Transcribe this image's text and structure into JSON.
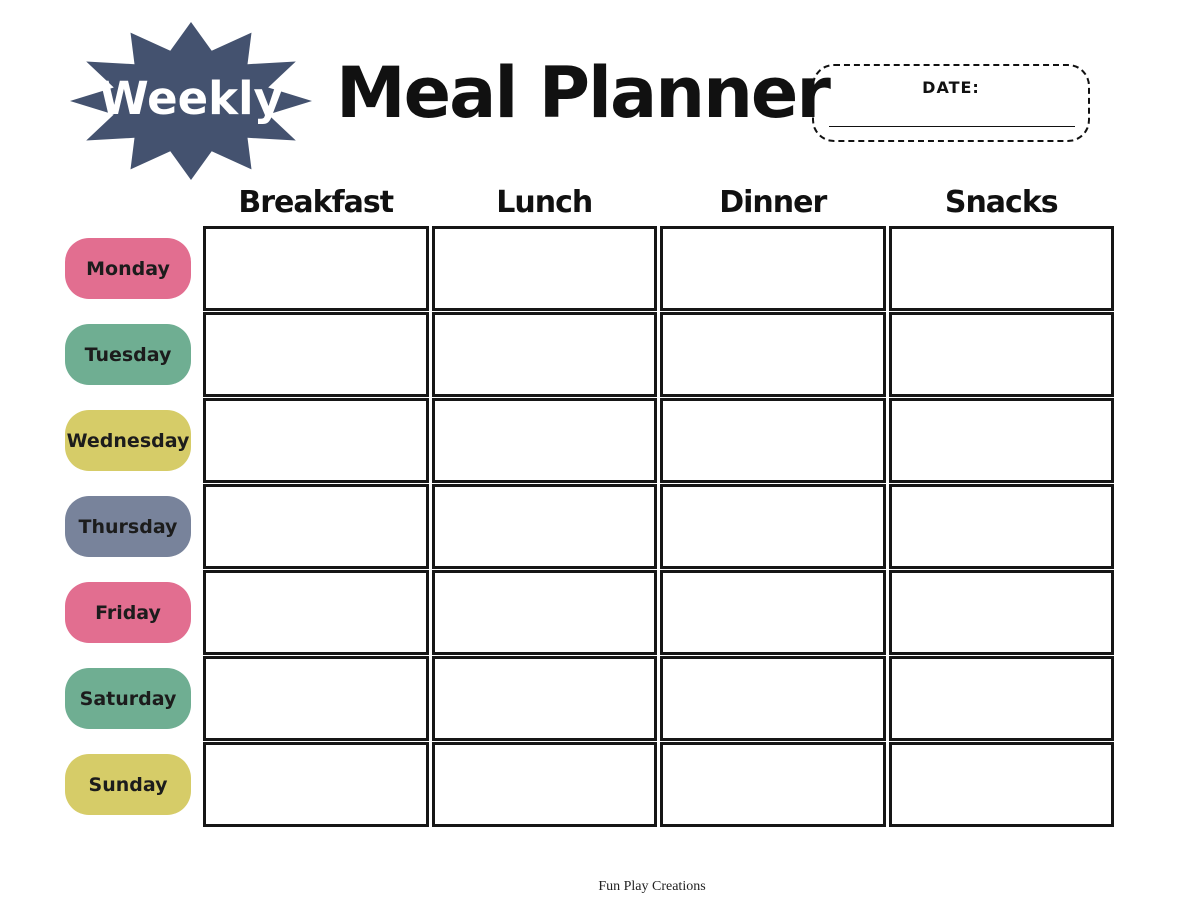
{
  "page": {
    "badge_label": "Weekly",
    "title": "Meal Planner",
    "footer": "Fun Play Creations"
  },
  "date_box": {
    "label": "DATE:",
    "value": ""
  },
  "columns": [
    "Breakfast",
    "Lunch",
    "Dinner",
    "Snacks"
  ],
  "days": [
    {
      "label": "Monday",
      "color": "#e26e90"
    },
    {
      "label": "Tuesday",
      "color": "#6fae92"
    },
    {
      "label": "Wednesday",
      "color": "#d6cc68"
    },
    {
      "label": "Thursday",
      "color": "#78839b"
    },
    {
      "label": "Friday",
      "color": "#e26e90"
    },
    {
      "label": "Saturday",
      "color": "#6fae92"
    },
    {
      "label": "Sunday",
      "color": "#d6cc68"
    }
  ],
  "colors": {
    "badge": "#44526f",
    "badge_text": "#ffffff",
    "grid_border": "#161616",
    "text": "#111111"
  },
  "cells": {
    "value": ""
  }
}
